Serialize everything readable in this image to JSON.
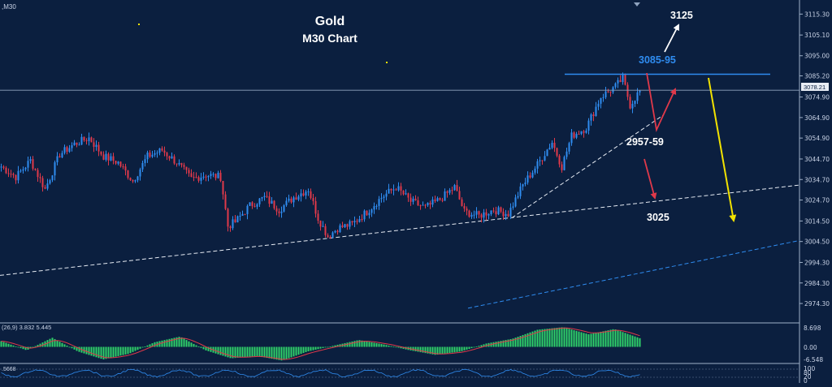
{
  "chart_data": {
    "type": "candlestick",
    "instrument": "Gold",
    "timeframe": "M30",
    "title": "Gold",
    "subtitle": "M30 Chart",
    "symbol_label": ",M30",
    "ylim": [
      2968,
      3119
    ],
    "y_ticks": [
      3115.3,
      3105.1,
      3095.0,
      3085.2,
      3074.9,
      3064.9,
      3054.9,
      3044.7,
      3034.7,
      3024.7,
      3014.5,
      3004.5,
      2994.3,
      2984.3,
      2974.3
    ],
    "current_price": "3078.21",
    "grid": false,
    "colors": {
      "background": "#0b1f3f",
      "up": "#2f8cf0",
      "down": "#e0394a",
      "text": "#ffffff",
      "accent_blue": "#2f8cf0",
      "yellow": "#f2e200"
    },
    "price_path": [
      {
        "bar": 0,
        "price": 3041
      },
      {
        "bar": 6,
        "price": 3036
      },
      {
        "bar": 12,
        "price": 3044
      },
      {
        "bar": 18,
        "price": 3030
      },
      {
        "bar": 24,
        "price": 3047
      },
      {
        "bar": 30,
        "price": 3052
      },
      {
        "bar": 36,
        "price": 3055
      },
      {
        "bar": 42,
        "price": 3046
      },
      {
        "bar": 48,
        "price": 3043
      },
      {
        "bar": 54,
        "price": 3034
      },
      {
        "bar": 60,
        "price": 3046
      },
      {
        "bar": 66,
        "price": 3049
      },
      {
        "bar": 72,
        "price": 3043
      },
      {
        "bar": 78,
        "price": 3035
      },
      {
        "bar": 84,
        "price": 3037
      },
      {
        "bar": 90,
        "price": 3036
      },
      {
        "bar": 93,
        "price": 3012
      },
      {
        "bar": 96,
        "price": 3014
      },
      {
        "bar": 102,
        "price": 3022
      },
      {
        "bar": 108,
        "price": 3026
      },
      {
        "bar": 114,
        "price": 3020
      },
      {
        "bar": 120,
        "price": 3026
      },
      {
        "bar": 126,
        "price": 3030
      },
      {
        "bar": 130,
        "price": 3016
      },
      {
        "bar": 134,
        "price": 3007
      },
      {
        "bar": 138,
        "price": 3011
      },
      {
        "bar": 144,
        "price": 3013
      },
      {
        "bar": 150,
        "price": 3019
      },
      {
        "bar": 156,
        "price": 3026
      },
      {
        "bar": 162,
        "price": 3031
      },
      {
        "bar": 168,
        "price": 3024
      },
      {
        "bar": 174,
        "price": 3021
      },
      {
        "bar": 180,
        "price": 3025
      },
      {
        "bar": 186,
        "price": 3031
      },
      {
        "bar": 190,
        "price": 3019
      },
      {
        "bar": 196,
        "price": 3017
      },
      {
        "bar": 202,
        "price": 3020
      },
      {
        "bar": 208,
        "price": 3018
      },
      {
        "bar": 214,
        "price": 3032
      },
      {
        "bar": 220,
        "price": 3042
      },
      {
        "bar": 226,
        "price": 3053
      },
      {
        "bar": 230,
        "price": 3041
      },
      {
        "bar": 234,
        "price": 3056
      },
      {
        "bar": 240,
        "price": 3060
      },
      {
        "bar": 246,
        "price": 3075
      },
      {
        "bar": 252,
        "price": 3080
      },
      {
        "bar": 255,
        "price": 3084
      },
      {
        "bar": 258,
        "price": 3071
      },
      {
        "bar": 262,
        "price": 3078
      }
    ],
    "resistance_zone": {
      "label": "3085-95",
      "price": 3086
    },
    "annotations": [
      {
        "text": "3125",
        "role": "upside target"
      },
      {
        "text": "3085-95",
        "role": "resistance zone"
      },
      {
        "text": "2957-59",
        "role": "support"
      },
      {
        "text": "3025",
        "role": "support"
      }
    ],
    "trendlines": [
      {
        "style": "dashed",
        "color": "white",
        "from": {
          "bar": 0,
          "price": 2988
        },
        "to": {
          "bar": "end",
          "price": 3032
        }
      },
      {
        "style": "dashed",
        "color": "white",
        "from": {
          "bar": 210,
          "price": 3016
        },
        "to": {
          "bar": 272,
          "price": 3066
        }
      },
      {
        "style": "dashed",
        "color": "blue",
        "from": {
          "bar": 192,
          "price": 2972
        },
        "to": {
          "bar": "end",
          "price": 3005
        }
      }
    ],
    "macd": {
      "label": "(26,9) 3.832 5.445",
      "y_ticks": [
        "8.698",
        "0.00",
        "-6.548"
      ],
      "values": [
        2.5,
        -1.5,
        4.0,
        -2.0,
        -5.5,
        -3.0,
        2.0,
        4.5,
        -1.5,
        -5.0,
        -4.0,
        -6.0,
        -2.0,
        0.5,
        3.0,
        1.0,
        -1.5,
        -3.5,
        -2.0,
        1.5,
        3.5,
        7.5,
        8.6,
        5.5,
        7.8,
        3.8
      ]
    },
    "stoch": {
      "label": ".5668",
      "y_ticks": [
        "100",
        "80",
        "20",
        "0"
      ]
    }
  }
}
